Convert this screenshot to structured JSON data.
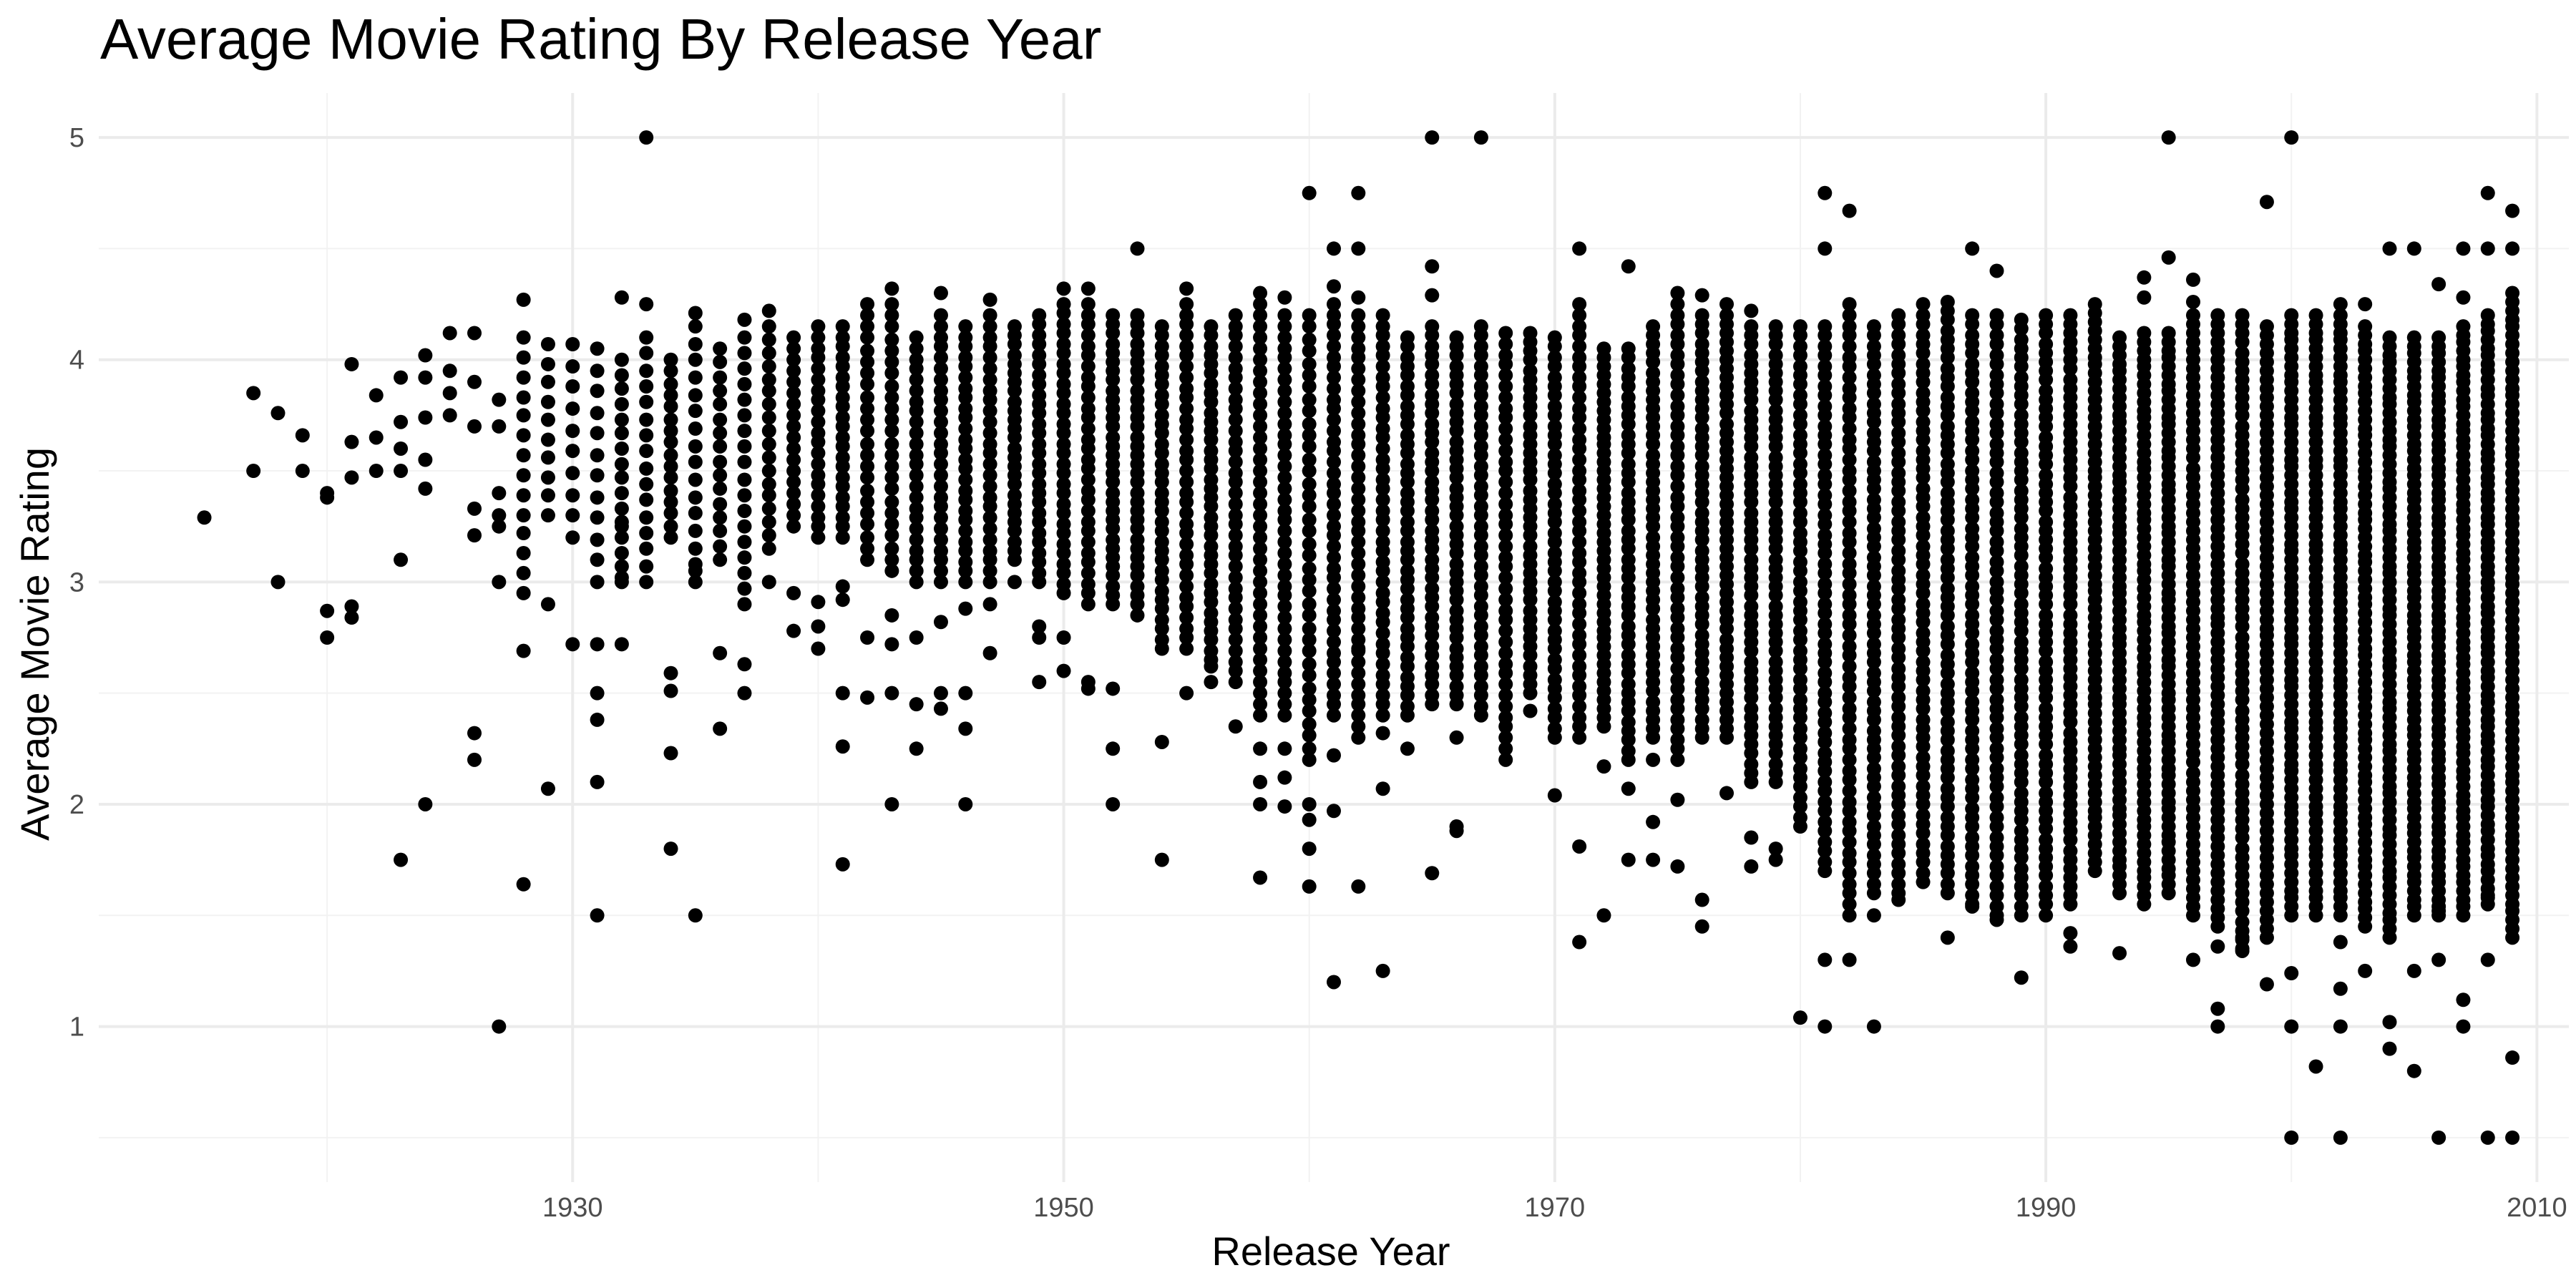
{
  "chart_data": {
    "type": "scatter",
    "title": "Average Movie Rating By Release Year",
    "xlabel": "Release Year",
    "ylabel": "Average Movie Rating",
    "xlim": [
      1910.7,
      2011.3
    ],
    "ylim": [
      0.3,
      5.2
    ],
    "x_major_ticks": [
      1930,
      1950,
      1970,
      1990,
      2010
    ],
    "x_minor_ticks": [
      1920,
      1940,
      1960,
      1980,
      2000
    ],
    "y_major_ticks": [
      1,
      2,
      3,
      4,
      5
    ],
    "y_minor_ticks": [
      0.5,
      1.5,
      2.5,
      3.5,
      4.5
    ],
    "x_tick_labels": [
      "1930",
      "1950",
      "1970",
      "1990",
      "2010"
    ],
    "y_tick_labels": [
      "1",
      "2",
      "3",
      "4",
      "5"
    ],
    "grid": true,
    "point_color": "#000000",
    "columns": [
      {
        "year": 1915,
        "points": [
          3.29
        ]
      },
      {
        "year": 1917,
        "points": [
          3.85,
          3.5
        ]
      },
      {
        "year": 1918,
        "points": [
          3.76,
          3.0
        ]
      },
      {
        "year": 1919,
        "points": [
          3.66,
          3.5
        ]
      },
      {
        "year": 1920,
        "points": [
          3.4,
          3.38,
          2.87,
          2.75
        ]
      },
      {
        "year": 1921,
        "points": [
          3.98,
          3.63,
          3.47,
          2.89,
          2.84
        ]
      },
      {
        "year": 1922,
        "points": [
          3.84,
          3.65,
          3.5
        ]
      },
      {
        "year": 1923,
        "points": [
          3.92,
          3.72,
          3.6,
          3.5,
          3.1,
          1.75
        ]
      },
      {
        "year": 1924,
        "points": [
          4.02,
          3.92,
          3.74,
          3.55,
          3.42,
          2.0
        ]
      },
      {
        "year": 1925,
        "points": [
          4.12,
          3.95,
          3.85,
          3.75
        ]
      },
      {
        "year": 1926,
        "points": [
          4.12,
          3.9,
          3.7,
          3.33,
          3.21,
          2.32,
          2.2
        ]
      },
      {
        "year": 1927,
        "points": [
          3.82,
          3.7,
          3.4,
          3.3,
          3.25,
          3.0,
          1.0
        ]
      },
      {
        "year": 1928,
        "low": 2.95,
        "high": 4.1,
        "count": 14,
        "extra": [
          4.27,
          2.69,
          1.64
        ]
      },
      {
        "year": 1929,
        "low": 3.3,
        "high": 4.07,
        "count": 10,
        "extra": [
          2.9,
          2.07
        ]
      },
      {
        "year": 1930,
        "low": 3.2,
        "high": 4.07,
        "count": 10,
        "extra": [
          2.72
        ]
      },
      {
        "year": 1931,
        "low": 3.0,
        "high": 4.05,
        "count": 12,
        "extra": [
          2.72,
          2.5,
          2.38,
          2.1,
          1.5
        ]
      },
      {
        "year": 1932,
        "low": 3.0,
        "high": 4.0,
        "count": 16,
        "extra": [
          4.28,
          3.25,
          3.02,
          2.72
        ]
      },
      {
        "year": 1933,
        "low": 3.0,
        "high": 4.1,
        "count": 16,
        "extra": [
          5.0,
          4.25
        ]
      },
      {
        "year": 1934,
        "low": 3.2,
        "high": 4.0,
        "count": 16,
        "extra": [
          2.59,
          2.51,
          2.23,
          1.8
        ]
      },
      {
        "year": 1935,
        "low": 3.0,
        "high": 4.15,
        "count": 16,
        "extra": [
          4.21,
          3.05,
          1.5
        ]
      },
      {
        "year": 1936,
        "low": 3.1,
        "high": 4.05,
        "count": 16,
        "extra": [
          2.68,
          2.34
        ]
      },
      {
        "year": 1937,
        "low": 2.9,
        "high": 4.1,
        "count": 18,
        "extra": [
          4.18,
          2.63,
          2.5
        ]
      },
      {
        "year": 1938,
        "low": 3.15,
        "high": 4.15,
        "count": 18,
        "extra": [
          4.22,
          3.0
        ]
      },
      {
        "year": 1939,
        "low": 3.25,
        "high": 4.1,
        "count": 18,
        "extra": [
          2.95,
          2.78
        ]
      },
      {
        "year": 1940,
        "low": 3.2,
        "high": 4.1,
        "count": 20,
        "extra": [
          4.15,
          2.91,
          2.8,
          2.7
        ]
      },
      {
        "year": 1941,
        "low": 3.2,
        "high": 4.15,
        "count": 22,
        "extra": [
          2.98,
          2.92,
          2.5,
          2.26,
          1.73
        ]
      },
      {
        "year": 1942,
        "low": 3.1,
        "high": 4.2,
        "count": 22,
        "extra": [
          4.25,
          2.75,
          2.48
        ]
      },
      {
        "year": 1943,
        "low": 3.05,
        "high": 4.25,
        "count": 24,
        "extra": [
          4.32,
          2.85,
          2.72,
          2.5,
          2.0
        ]
      },
      {
        "year": 1944,
        "low": 3.0,
        "high": 4.1,
        "count": 24,
        "extra": [
          2.75,
          2.45,
          2.25
        ]
      },
      {
        "year": 1945,
        "low": 3.0,
        "high": 4.2,
        "count": 26,
        "extra": [
          4.3,
          2.82,
          2.5,
          2.43
        ]
      },
      {
        "year": 1946,
        "low": 3.0,
        "high": 4.15,
        "count": 26,
        "extra": [
          2.88,
          2.5,
          2.34,
          2.0
        ]
      },
      {
        "year": 1947,
        "low": 3.0,
        "high": 4.2,
        "count": 26,
        "extra": [
          4.27,
          2.9,
          2.68
        ]
      },
      {
        "year": 1948,
        "low": 3.1,
        "high": 4.15,
        "count": 26,
        "extra": [
          3.0
        ]
      },
      {
        "year": 1949,
        "low": 3.0,
        "high": 4.2,
        "count": 28,
        "extra": [
          2.8,
          2.75,
          2.55
        ]
      },
      {
        "year": 1950,
        "low": 2.95,
        "high": 4.25,
        "count": 30,
        "extra": [
          4.32,
          2.75,
          2.6
        ]
      },
      {
        "year": 1951,
        "low": 2.9,
        "high": 4.25,
        "count": 30,
        "extra": [
          4.32,
          2.55,
          2.52
        ]
      },
      {
        "year": 1952,
        "low": 2.9,
        "high": 4.2,
        "count": 32,
        "extra": [
          2.52,
          2.25,
          2.0
        ]
      },
      {
        "year": 1953,
        "low": 2.9,
        "high": 4.2,
        "count": 32,
        "extra": [
          4.5,
          2.85
        ]
      },
      {
        "year": 1954,
        "low": 2.7,
        "high": 4.15,
        "count": 34,
        "extra": [
          2.28,
          1.75
        ]
      },
      {
        "year": 1955,
        "low": 2.7,
        "high": 4.25,
        "count": 34,
        "extra": [
          4.32,
          2.5
        ]
      },
      {
        "year": 1956,
        "low": 2.65,
        "high": 4.15,
        "count": 36,
        "extra": [
          2.62,
          2.55
        ]
      },
      {
        "year": 1957,
        "low": 2.55,
        "high": 4.2,
        "count": 36,
        "extra": [
          2.35
        ]
      },
      {
        "year": 1958,
        "low": 2.4,
        "high": 4.25,
        "count": 38,
        "extra": [
          4.3,
          2.25,
          2.1,
          2.0,
          1.67
        ]
      },
      {
        "year": 1959,
        "low": 2.4,
        "high": 4.2,
        "count": 38,
        "extra": [
          4.28,
          2.25,
          2.12,
          1.99
        ]
      },
      {
        "year": 1960,
        "low": 2.2,
        "high": 4.2,
        "count": 38,
        "extra": [
          4.75,
          2.0,
          1.93,
          1.8,
          1.63
        ]
      },
      {
        "year": 1961,
        "low": 2.4,
        "high": 4.25,
        "count": 40,
        "extra": [
          4.5,
          4.33,
          2.22,
          1.97,
          1.2
        ]
      },
      {
        "year": 1962,
        "low": 2.3,
        "high": 4.2,
        "count": 40,
        "extra": [
          4.75,
          4.5,
          4.28,
          2.7,
          1.63
        ]
      },
      {
        "year": 1963,
        "low": 2.4,
        "high": 4.2,
        "count": 40,
        "extra": [
          2.32,
          2.07,
          1.25
        ]
      },
      {
        "year": 1964,
        "low": 2.4,
        "high": 4.1,
        "count": 40,
        "extra": [
          2.25
        ]
      },
      {
        "year": 1965,
        "low": 2.45,
        "high": 4.15,
        "count": 40,
        "extra": [
          5.0,
          4.42,
          4.29,
          1.69
        ]
      },
      {
        "year": 1966,
        "low": 2.45,
        "high": 4.1,
        "count": 40,
        "extra": [
          2.3,
          1.9,
          1.88
        ]
      },
      {
        "year": 1967,
        "low": 2.4,
        "high": 4.15,
        "count": 40,
        "extra": [
          5.0
        ]
      },
      {
        "year": 1968,
        "low": 2.25,
        "high": 4.12,
        "count": 40,
        "extra": [
          2.2
        ]
      },
      {
        "year": 1969,
        "low": 2.5,
        "high": 4.12,
        "count": 40,
        "extra": [
          2.42
        ]
      },
      {
        "year": 1970,
        "low": 2.3,
        "high": 4.1,
        "count": 42,
        "extra": [
          2.04
        ]
      },
      {
        "year": 1971,
        "low": 2.3,
        "high": 4.2,
        "count": 42,
        "extra": [
          4.5,
          4.25,
          1.81,
          1.38
        ]
      },
      {
        "year": 1972,
        "low": 2.35,
        "high": 4.05,
        "count": 44,
        "extra": [
          2.17,
          1.5
        ]
      },
      {
        "year": 1973,
        "low": 2.2,
        "high": 4.05,
        "count": 44,
        "extra": [
          4.42,
          2.07,
          1.75
        ]
      },
      {
        "year": 1974,
        "low": 2.3,
        "high": 4.15,
        "count": 46,
        "extra": [
          2.2,
          1.92,
          1.75
        ]
      },
      {
        "year": 1975,
        "low": 2.2,
        "high": 4.25,
        "count": 46,
        "extra": [
          4.3,
          2.02,
          1.72
        ]
      },
      {
        "year": 1976,
        "low": 2.3,
        "high": 4.2,
        "count": 46,
        "extra": [
          4.29,
          1.57,
          1.45
        ]
      },
      {
        "year": 1977,
        "low": 2.3,
        "high": 4.2,
        "count": 48,
        "extra": [
          4.25,
          2.05
        ]
      },
      {
        "year": 1978,
        "low": 2.1,
        "high": 4.15,
        "count": 50,
        "extra": [
          4.22,
          1.85,
          1.72
        ]
      },
      {
        "year": 1979,
        "low": 2.1,
        "high": 4.15,
        "count": 50,
        "extra": [
          1.8,
          1.75
        ]
      },
      {
        "year": 1980,
        "low": 1.9,
        "high": 4.15,
        "count": 52,
        "extra": [
          1.04
        ]
      },
      {
        "year": 1981,
        "low": 1.7,
        "high": 4.15,
        "count": 56,
        "extra": [
          4.75,
          4.5,
          1.3,
          1.0
        ]
      },
      {
        "year": 1982,
        "low": 1.55,
        "high": 4.2,
        "count": 58,
        "extra": [
          4.67,
          4.25,
          1.3,
          1.5
        ]
      },
      {
        "year": 1983,
        "low": 1.6,
        "high": 4.15,
        "count": 60,
        "extra": [
          1.5,
          1.0
        ]
      },
      {
        "year": 1984,
        "low": 1.6,
        "high": 4.2,
        "count": 60,
        "extra": [
          1.57
        ]
      },
      {
        "year": 1985,
        "low": 1.65,
        "high": 4.2,
        "count": 60,
        "extra": [
          4.25
        ]
      },
      {
        "year": 1986,
        "low": 1.6,
        "high": 4.22,
        "count": 62,
        "extra": [
          4.26,
          1.4
        ]
      },
      {
        "year": 1987,
        "low": 1.55,
        "high": 4.2,
        "count": 62,
        "extra": [
          4.5,
          1.54
        ]
      },
      {
        "year": 1988,
        "low": 1.5,
        "high": 4.2,
        "count": 62,
        "extra": [
          4.4,
          1.48
        ]
      },
      {
        "year": 1989,
        "low": 1.5,
        "high": 4.18,
        "count": 64,
        "extra": [
          1.22
        ]
      },
      {
        "year": 1990,
        "low": 1.55,
        "high": 4.2,
        "count": 64,
        "extra": [
          1.5
        ]
      },
      {
        "year": 1991,
        "low": 1.55,
        "high": 4.2,
        "count": 66,
        "extra": [
          1.42,
          1.36
        ]
      },
      {
        "year": 1992,
        "low": 1.7,
        "high": 4.25,
        "count": 66,
        "extra": []
      },
      {
        "year": 1993,
        "low": 1.6,
        "high": 4.1,
        "count": 66,
        "extra": [
          1.33
        ]
      },
      {
        "year": 1994,
        "low": 1.55,
        "high": 4.12,
        "count": 68,
        "extra": [
          4.37,
          4.28
        ]
      },
      {
        "year": 1995,
        "low": 1.6,
        "high": 4.12,
        "count": 68,
        "extra": [
          5.0,
          4.46
        ]
      },
      {
        "year": 1996,
        "low": 1.5,
        "high": 4.2,
        "count": 68,
        "extra": [
          4.36,
          4.26,
          1.3
        ]
      },
      {
        "year": 1997,
        "low": 1.45,
        "high": 4.2,
        "count": 70,
        "extra": [
          1.36,
          1.08,
          1.0
        ]
      },
      {
        "year": 1998,
        "low": 1.35,
        "high": 4.2,
        "count": 70,
        "extra": [
          1.4,
          1.34
        ]
      },
      {
        "year": 1999,
        "low": 1.4,
        "high": 4.15,
        "count": 70,
        "extra": [
          4.71,
          1.19
        ]
      },
      {
        "year": 2000,
        "low": 1.5,
        "high": 4.2,
        "count": 72,
        "extra": [
          5.0,
          1.24,
          1.0,
          0.5
        ]
      },
      {
        "year": 2001,
        "low": 1.5,
        "high": 4.2,
        "count": 72,
        "extra": [
          0.82
        ]
      },
      {
        "year": 2002,
        "low": 1.5,
        "high": 4.2,
        "count": 72,
        "extra": [
          4.25,
          1.38,
          1.17,
          1.0,
          0.5
        ]
      },
      {
        "year": 2003,
        "low": 1.45,
        "high": 4.15,
        "count": 72,
        "extra": [
          4.25,
          1.25
        ]
      },
      {
        "year": 2004,
        "low": 1.4,
        "high": 4.1,
        "count": 72,
        "extra": [
          4.5,
          1.02,
          0.9
        ]
      },
      {
        "year": 2005,
        "low": 1.5,
        "high": 4.1,
        "count": 72,
        "extra": [
          4.5,
          1.25,
          0.8
        ]
      },
      {
        "year": 2006,
        "low": 1.5,
        "high": 4.1,
        "count": 72,
        "extra": [
          4.34,
          1.52,
          1.3,
          0.5
        ]
      },
      {
        "year": 2007,
        "low": 1.5,
        "high": 4.15,
        "count": 74,
        "extra": [
          4.5,
          4.28,
          1.12,
          1.0
        ]
      },
      {
        "year": 2008,
        "low": 1.55,
        "high": 4.2,
        "count": 74,
        "extra": [
          4.75,
          4.5,
          1.58,
          1.3,
          0.5
        ]
      },
      {
        "year": 2009,
        "low": 1.4,
        "high": 4.3,
        "count": 76,
        "extra": [
          4.67,
          4.5,
          0.86,
          0.5
        ]
      }
    ]
  }
}
